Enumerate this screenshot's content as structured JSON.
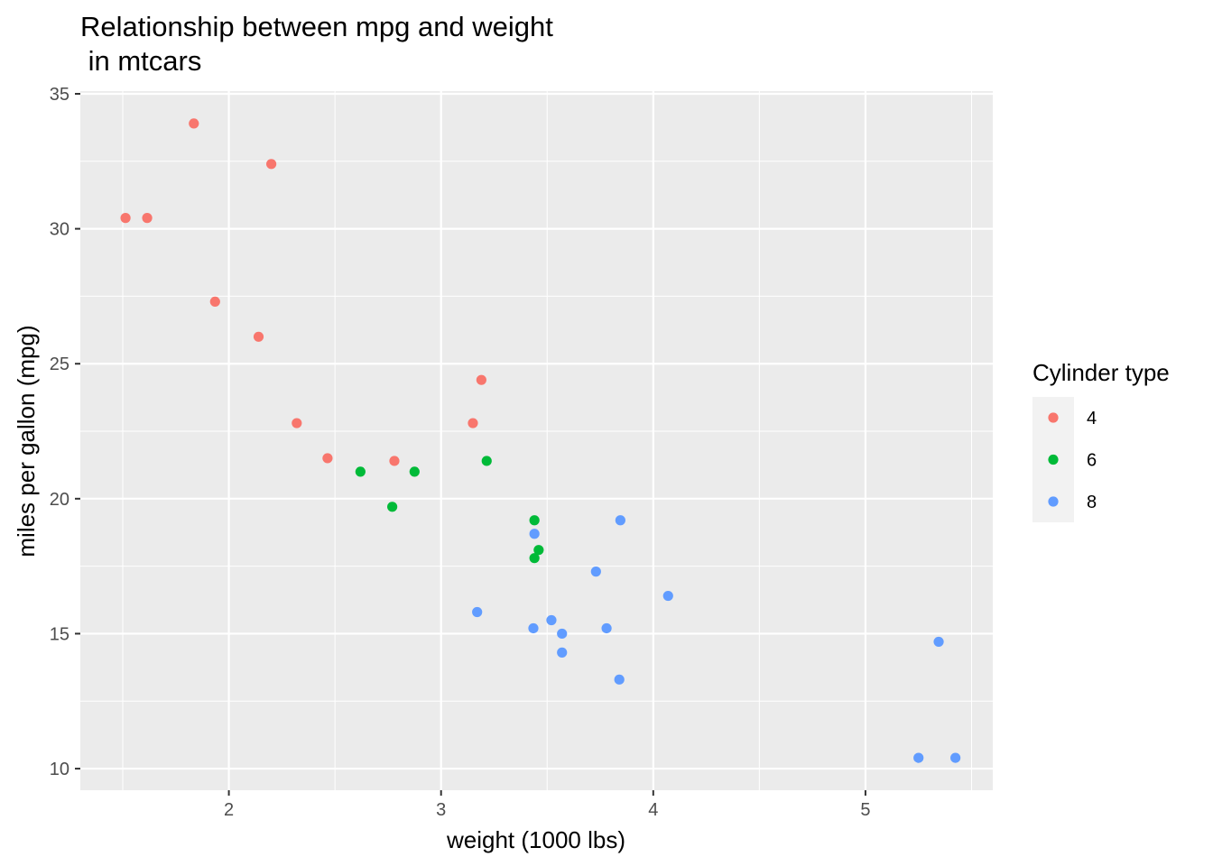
{
  "chart_data": {
    "type": "scatter",
    "title_lines": [
      "Relationship between mpg and weight",
      " in mtcars"
    ],
    "xlabel": "weight (1000 lbs)",
    "ylabel": "miles per gallon (mpg)",
    "xlim": [
      1.3,
      5.6
    ],
    "ylim": [
      9.2,
      35.1
    ],
    "x_ticks": [
      2,
      3,
      4,
      5
    ],
    "x_tick_labels": [
      "2",
      "3",
      "4",
      "5"
    ],
    "y_ticks": [
      10,
      15,
      20,
      25,
      30,
      35
    ],
    "y_tick_labels": [
      "10",
      "15",
      "20",
      "25",
      "30",
      "35"
    ],
    "grid": true,
    "legend": {
      "title": "Cylinder type",
      "placement": "right",
      "entries": [
        {
          "label": "4",
          "color": "#F8766D"
        },
        {
          "label": "6",
          "color": "#00BA38"
        },
        {
          "label": "8",
          "color": "#619CFF"
        }
      ]
    },
    "series": [
      {
        "name": "4",
        "color": "#F8766D",
        "points": [
          {
            "x": 2.32,
            "y": 22.8
          },
          {
            "x": 3.19,
            "y": 24.4
          },
          {
            "x": 3.15,
            "y": 22.8
          },
          {
            "x": 2.2,
            "y": 32.4
          },
          {
            "x": 1.615,
            "y": 30.4
          },
          {
            "x": 1.835,
            "y": 33.9
          },
          {
            "x": 2.465,
            "y": 21.5
          },
          {
            "x": 1.935,
            "y": 27.3
          },
          {
            "x": 2.14,
            "y": 26.0
          },
          {
            "x": 1.513,
            "y": 30.4
          },
          {
            "x": 2.78,
            "y": 21.4
          }
        ]
      },
      {
        "name": "6",
        "color": "#00BA38",
        "points": [
          {
            "x": 2.62,
            "y": 21.0
          },
          {
            "x": 2.875,
            "y": 21.0
          },
          {
            "x": 3.215,
            "y": 21.4
          },
          {
            "x": 3.46,
            "y": 18.1
          },
          {
            "x": 3.44,
            "y": 19.2
          },
          {
            "x": 3.44,
            "y": 17.8
          },
          {
            "x": 2.77,
            "y": 19.7
          }
        ]
      },
      {
        "name": "8",
        "color": "#619CFF",
        "points": [
          {
            "x": 3.44,
            "y": 18.7
          },
          {
            "x": 3.57,
            "y": 14.3
          },
          {
            "x": 4.07,
            "y": 16.4
          },
          {
            "x": 3.73,
            "y": 17.3
          },
          {
            "x": 3.78,
            "y": 15.2
          },
          {
            "x": 5.25,
            "y": 10.4
          },
          {
            "x": 5.424,
            "y": 10.4
          },
          {
            "x": 5.345,
            "y": 14.7
          },
          {
            "x": 3.52,
            "y": 15.5
          },
          {
            "x": 3.435,
            "y": 15.2
          },
          {
            "x": 3.84,
            "y": 13.3
          },
          {
            "x": 3.845,
            "y": 19.2
          },
          {
            "x": 3.17,
            "y": 15.8
          },
          {
            "x": 3.57,
            "y": 15.0
          }
        ]
      }
    ]
  }
}
